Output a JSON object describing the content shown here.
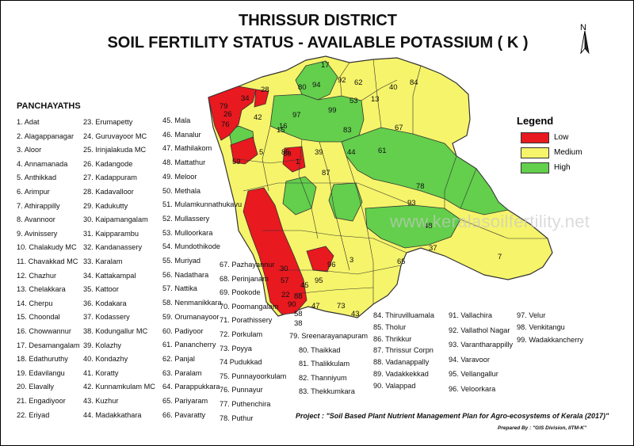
{
  "title_line1": "THRISSUR DISTRICT",
  "title_line2": "SOIL FERTILITY STATUS - AVAILABLE POTASSIUM ( K )",
  "north_label": "N",
  "legend": {
    "title": "Legend",
    "items": [
      {
        "label": "Low",
        "color": "#e8191f"
      },
      {
        "label": "Medium",
        "color": "#f6f46a"
      },
      {
        "label": "High",
        "color": "#63cf4c"
      }
    ]
  },
  "panchayaths_heading": "PANCHAYATHS",
  "panchayaths": [
    "1. Adat",
    "2. Alagappanagar",
    "3. Aloor",
    "4. Annamanada",
    "5. Anthikkad",
    "6. Arimpur",
    "7. Athirappilly",
    "8. Avannoor",
    "9. Avinissery",
    "10. Chalakudy MC",
    "11. Chavakkad  MC",
    "12. Chazhur",
    "13. Chelakkara",
    "14. Cherpu",
    "15. Choondal",
    "16. Chowwannur",
    "17. Desamangalam",
    "18. Edathuruthy",
    "19. Edavilangu",
    "20. Elavally",
    "21. Engadiyoor",
    "22. Eriyad",
    "23. Erumapetty",
    "24. Guruvayoor  MC",
    "25. Irinjalakuda  MC",
    "26. Kadangode",
    "27. Kadappuram",
    "28. Kadavalloor",
    "29. Kadukutty",
    "30. Kaipamangalam",
    "31. Kaipparambu",
    "32. Kandanassery",
    "33. Karalam",
    "34. Kattakampal",
    "35. Kattoor",
    "36. Kodakara",
    "37. Kodassery",
    "38. Kodungallur MC",
    "39. Kolazhy",
    "40. Kondazhy",
    "41. Koratty",
    "42. Kunnamkulam  MC",
    "43. Kuzhur",
    "44. Madakkathara",
    "45. Mala",
    "46. Manalur",
    "47. Mathilakom",
    "48. Mattathur",
    "49. Meloor",
    "50. Methala",
    "51. Mulamkunnathukavu",
    "52. Mullassery",
    "53. Mulloorkara",
    "54. Mundothikode",
    "55. Muriyad",
    "56. Nadathara",
    "57. Nattika",
    "58. Nenmanikkara",
    "59. Orumanayoor",
    "60. Padiyoor",
    "61. Panancherry",
    "62. Panjal",
    "63. Paralam",
    "64. Parappukkara",
    "65. Pariyaram",
    "66. Pavaratty",
    "67. Pazhayannur",
    "68. Perinjanam",
    "69. Pookode",
    "70. Poomangalam",
    "71. Porathissery",
    "72. Porkulam",
    "73. Poyya",
    "74 Pudukkad",
    "75. Punnayoorkulam",
    "76. Punnayur",
    "77. Puthenchira",
    "78. Puthur",
    "79. Sreenarayanapuram",
    "80. Thaikkad",
    "81. Thalikkulam",
    "82. Thanniyum",
    "83. Thekkumkara",
    "84. Thiruvilluamala",
    "85. Tholur",
    "86. Thrikkur",
    "87. Thrissur Corpn",
    "88. Vadanappally",
    "89. Vadakkekkad",
    "90. Valappad",
    "91. Vallachira",
    "92. Vallathol Nagar",
    "93. Varantharappilly",
    "94. Varavoor",
    "95. Vellangallur",
    "96. Veloorkara",
    "97. Velur",
    "98. Venkitangu",
    "99. Wadakkancherry"
  ],
  "map_numbers": [
    {
      "n": "17",
      "c": "Medium"
    },
    {
      "n": "92",
      "c": "Medium"
    },
    {
      "n": "62",
      "c": "Medium"
    },
    {
      "n": "94",
      "c": "High"
    },
    {
      "n": "84",
      "c": "Medium"
    },
    {
      "n": "40",
      "c": "Medium"
    },
    {
      "n": "28",
      "c": "Medium"
    },
    {
      "n": "80",
      "c": "Medium"
    },
    {
      "n": "99",
      "c": "High"
    },
    {
      "n": "53",
      "c": "High"
    },
    {
      "n": "13",
      "c": "Medium"
    },
    {
      "n": "79",
      "c": "Low"
    },
    {
      "n": "34",
      "c": "Low"
    },
    {
      "n": "26",
      "c": "Medium"
    },
    {
      "n": "97",
      "c": "High"
    },
    {
      "n": "42",
      "c": "High"
    },
    {
      "n": "16",
      "c": "High"
    },
    {
      "n": "15",
      "c": "High"
    },
    {
      "n": "83",
      "c": "High"
    },
    {
      "n": "67",
      "c": "Medium"
    },
    {
      "n": "76",
      "c": "Medium"
    },
    {
      "n": "59",
      "c": "Low"
    },
    {
      "n": "89",
      "c": "Medium"
    },
    {
      "n": "85",
      "c": "Medium"
    },
    {
      "n": "39",
      "c": "Medium"
    },
    {
      "n": "44",
      "c": "High"
    },
    {
      "n": "61",
      "c": "High"
    },
    {
      "n": "87",
      "c": "Medium"
    },
    {
      "n": "1",
      "c": "Low"
    },
    {
      "n": "5",
      "c": "Medium"
    },
    {
      "n": "78",
      "c": "High"
    },
    {
      "n": "93",
      "c": "High"
    },
    {
      "n": "48",
      "c": "High"
    },
    {
      "n": "37",
      "c": "High"
    },
    {
      "n": "7",
      "c": "Medium"
    },
    {
      "n": "65",
      "c": "Medium"
    },
    {
      "n": "96",
      "c": "Low"
    },
    {
      "n": "3",
      "c": "Medium"
    },
    {
      "n": "95",
      "c": "Medium"
    },
    {
      "n": "43",
      "c": "Medium"
    },
    {
      "n": "73",
      "c": "Medium"
    },
    {
      "n": "58",
      "c": "Medium"
    },
    {
      "n": "45",
      "c": "Medium"
    },
    {
      "n": "30",
      "c": "Low"
    },
    {
      "n": "90",
      "c": "Low"
    },
    {
      "n": "88",
      "c": "Low"
    },
    {
      "n": "57",
      "c": "Low"
    },
    {
      "n": "22",
      "c": "Low"
    },
    {
      "n": "38",
      "c": "Low"
    },
    {
      "n": "47",
      "c": "Low"
    }
  ],
  "project_note": "Project : \"Soil Based Plant Nutrient Management Plan for Agro-ecosystems of Kerala (2017)\"",
  "prepared_by": "Prepared By : \"GIS Division, IITM-K\"",
  "watermark": "www.keralasoilfertility.net"
}
